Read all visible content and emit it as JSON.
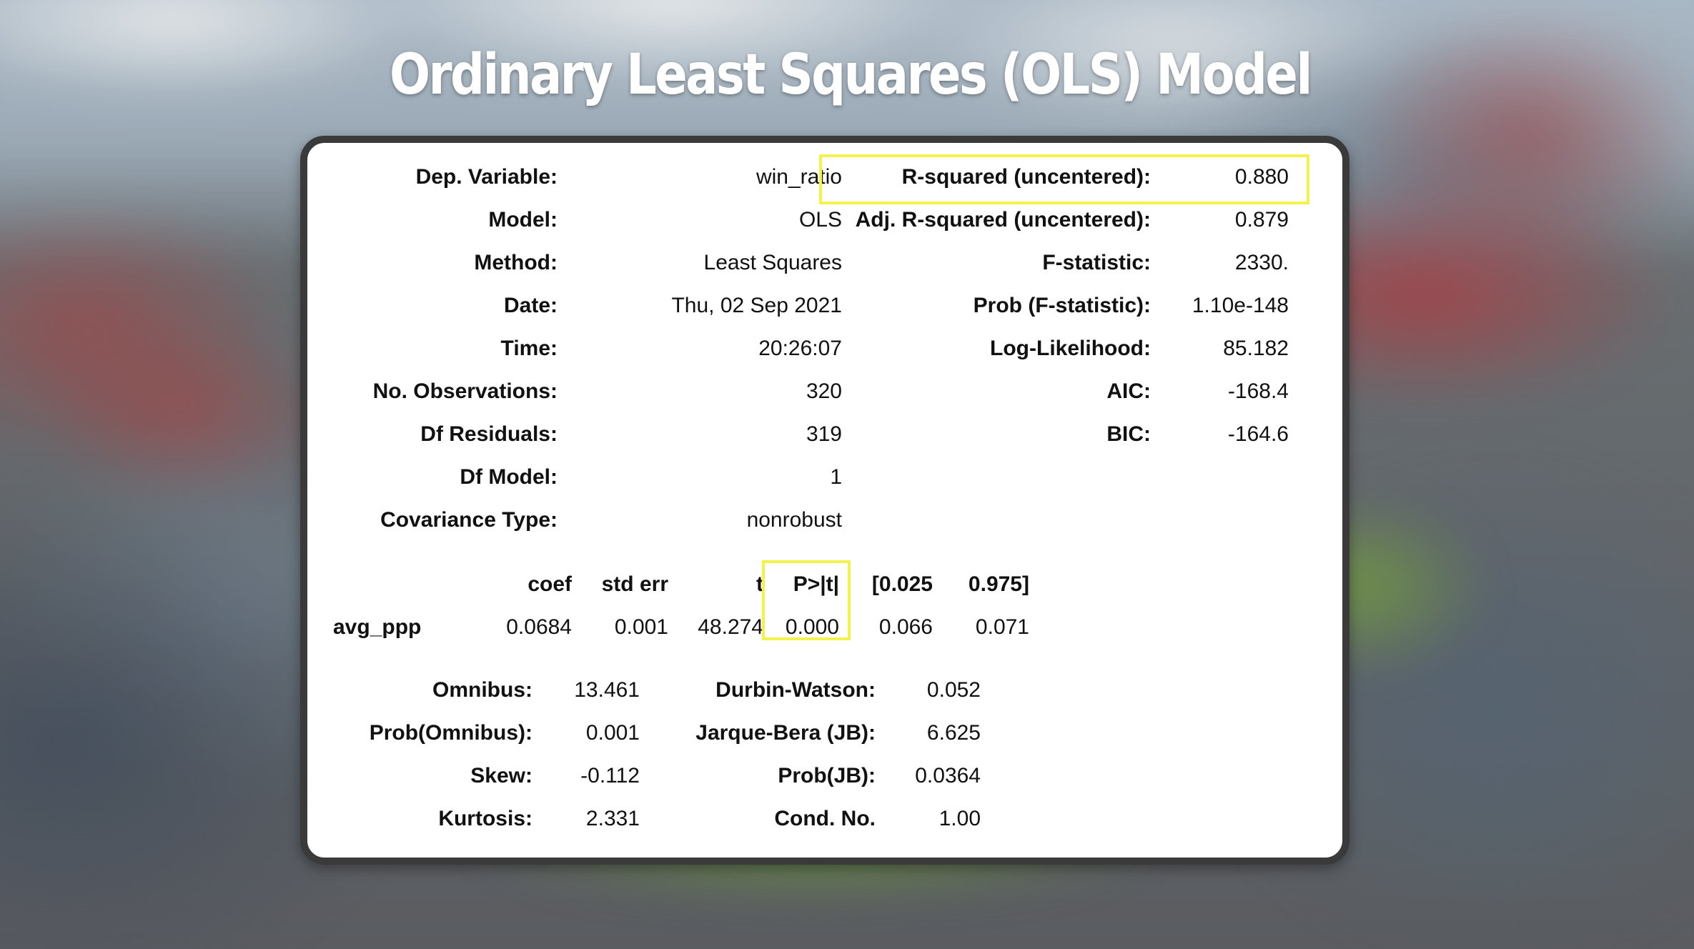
{
  "title": "Ordinary Least Squares (OLS) Model",
  "colors": {
    "highlight": "#f2f24a",
    "card_border": "#3a3a3a"
  },
  "left_stats": [
    {
      "label": "Dep. Variable:",
      "value": "win_ratio"
    },
    {
      "label": "Model:",
      "value": "OLS"
    },
    {
      "label": "Method:",
      "value": "Least Squares"
    },
    {
      "label": "Date:",
      "value": "Thu, 02 Sep 2021"
    },
    {
      "label": "Time:",
      "value": "20:26:07"
    },
    {
      "label": "No. Observations:",
      "value": "320"
    },
    {
      "label": "Df Residuals:",
      "value": "319"
    },
    {
      "label": "Df Model:",
      "value": "1"
    },
    {
      "label": "Covariance Type:",
      "value": "nonrobust"
    }
  ],
  "right_stats": [
    {
      "label": "R-squared (uncentered):",
      "value": "0.880"
    },
    {
      "label": "Adj. R-squared (uncentered):",
      "value": "0.879"
    },
    {
      "label": "F-statistic:",
      "value": "2330."
    },
    {
      "label": "Prob (F-statistic):",
      "value": "1.10e-148"
    },
    {
      "label": "Log-Likelihood:",
      "value": "85.182"
    },
    {
      "label": "AIC:",
      "value": "-168.4"
    },
    {
      "label": "BIC:",
      "value": "-164.6"
    }
  ],
  "coef_table": {
    "headers": [
      "coef",
      "std err",
      "t",
      "P>|t|",
      "[0.025",
      "0.975]"
    ],
    "row": {
      "name": "avg_ppp",
      "values": [
        "0.0684",
        "0.001",
        "48.274",
        "0.000",
        "0.066",
        "0.071"
      ]
    }
  },
  "diagnostics": [
    {
      "label": "Omnibus:",
      "value": "13.461",
      "label2": "Durbin-Watson:",
      "value2": "0.052"
    },
    {
      "label": "Prob(Omnibus):",
      "value": "0.001",
      "label2": "Jarque-Bera (JB):",
      "value2": "6.625"
    },
    {
      "label": "Skew:",
      "value": "-0.112",
      "label2": "Prob(JB):",
      "value2": "0.0364"
    },
    {
      "label": "Kurtosis:",
      "value": "2.331",
      "label2": "Cond. No.",
      "value2": "1.00"
    }
  ]
}
